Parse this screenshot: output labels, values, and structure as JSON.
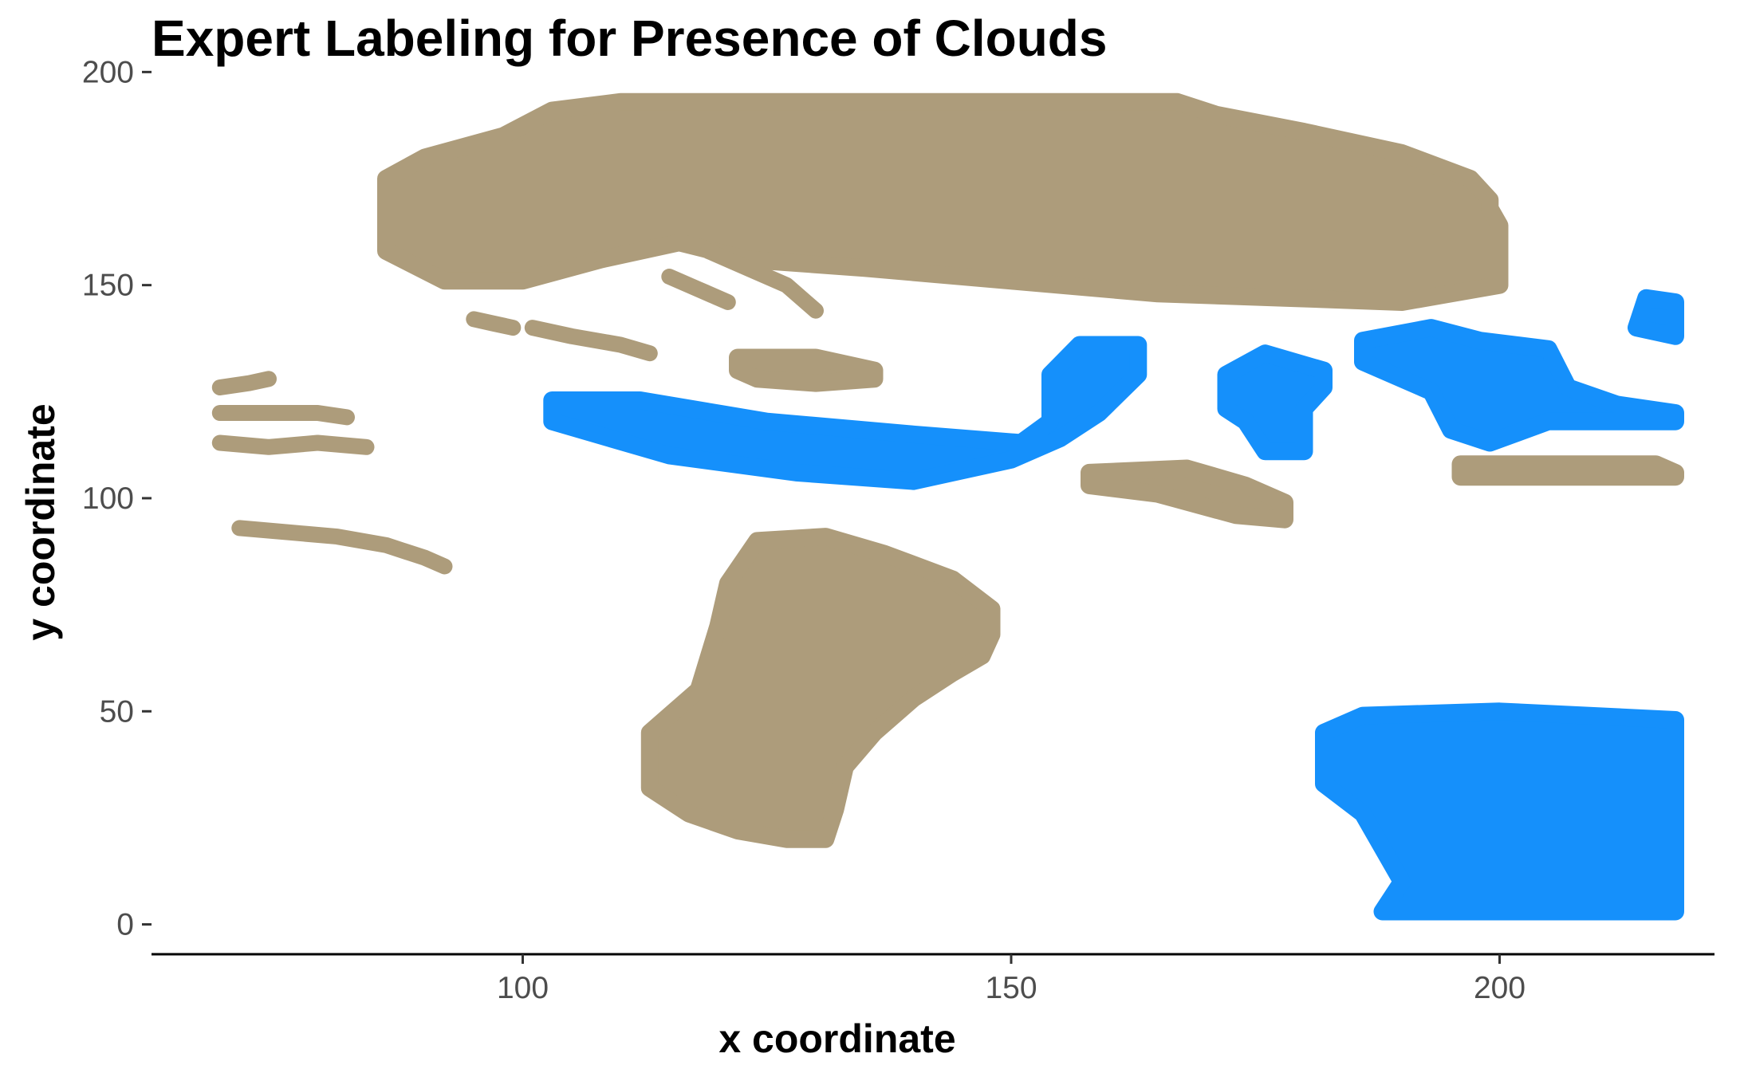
{
  "chart_data": {
    "type": "scatter",
    "title": "Expert Labeling for Presence of Clouds",
    "xlabel": "x coordinate",
    "ylabel": "y coordinate",
    "xlim": [
      62,
      222
    ],
    "ylim": [
      -7,
      201
    ],
    "xticks": [
      100,
      150,
      200
    ],
    "yticks": [
      0,
      50,
      100,
      150,
      200
    ],
    "grid": false,
    "legend": "none",
    "colors": {
      "tan": "#ad9c7b",
      "blue": "#1590fb"
    },
    "series": [
      {
        "color": "tan",
        "regions": [
          {
            "shape": "polygon",
            "points": [
              [
                86,
                175
              ],
              [
                90,
                180
              ],
              [
                98,
                185
              ],
              [
                103,
                191
              ],
              [
                110,
                193
              ],
              [
                167,
                193
              ],
              [
                171,
                190
              ],
              [
                180,
                186
              ],
              [
                190,
                181
              ],
              [
                197,
                175
              ],
              [
                199,
                170
              ],
              [
                199,
                168
              ],
              [
                200,
                164
              ],
              [
                200,
                150
              ],
              [
                190,
                146
              ],
              [
                178,
                147
              ],
              [
                165,
                148
              ],
              [
                150,
                151
              ],
              [
                135,
                154
              ],
              [
                123,
                156
              ],
              [
                116,
                160
              ],
              [
                108,
                156
              ],
              [
                100,
                151
              ],
              [
                92,
                151
              ],
              [
                86,
                158
              ]
            ]
          },
          {
            "shape": "polygon",
            "points": [
              [
                124,
                90
              ],
              [
                131,
                91
              ],
              [
                137,
                87
              ],
              [
                144,
                81
              ],
              [
                148,
                74
              ],
              [
                148,
                68
              ],
              [
                147,
                63
              ],
              [
                144,
                59
              ],
              [
                140,
                53
              ],
              [
                136,
                45
              ],
              [
                133,
                37
              ],
              [
                132,
                27
              ],
              [
                131,
                20
              ],
              [
                127,
                20
              ],
              [
                122,
                22
              ],
              [
                117,
                26
              ],
              [
                113,
                32
              ],
              [
                113,
                45
              ],
              [
                118,
                55
              ],
              [
                120,
                70
              ],
              [
                121,
                80
              ]
            ]
          },
          {
            "shape": "polyline",
            "points": [
              [
                69,
                126
              ],
              [
                72,
                127
              ],
              [
                74,
                128
              ]
            ]
          },
          {
            "shape": "polyline",
            "points": [
              [
                69,
                120
              ],
              [
                74,
                120
              ],
              [
                79,
                120
              ],
              [
                82,
                119
              ]
            ]
          },
          {
            "shape": "polyline",
            "points": [
              [
                69,
                113
              ],
              [
                74,
                112
              ],
              [
                79,
                113
              ],
              [
                84,
                112
              ]
            ]
          },
          {
            "shape": "polyline",
            "points": [
              [
                71,
                93
              ],
              [
                76,
                92
              ],
              [
                81,
                91
              ],
              [
                86,
                89
              ],
              [
                90,
                86
              ],
              [
                92,
                84
              ]
            ]
          },
          {
            "shape": "polyline",
            "points": [
              [
                95,
                142
              ],
              [
                97,
                141
              ],
              [
                99,
                140
              ]
            ]
          },
          {
            "shape": "polyline",
            "points": [
              [
                101,
                140
              ],
              [
                105,
                138
              ],
              [
                110,
                136
              ],
              [
                113,
                134
              ]
            ]
          },
          {
            "shape": "polyline",
            "points": [
              [
                115,
                152
              ],
              [
                118,
                149
              ],
              [
                121,
                146
              ]
            ]
          },
          {
            "shape": "polyline",
            "points": [
              [
                119,
                158
              ],
              [
                123,
                154
              ],
              [
                127,
                150
              ],
              [
                130,
                144
              ]
            ]
          },
          {
            "shape": "polygon",
            "points": [
              [
                122,
                133
              ],
              [
                130,
                133
              ],
              [
                136,
                130
              ],
              [
                136,
                128
              ],
              [
                130,
                127
              ],
              [
                124,
                128
              ],
              [
                122,
                130
              ]
            ]
          },
          {
            "shape": "polygon",
            "points": [
              [
                158,
                106
              ],
              [
                168,
                107
              ],
              [
                174,
                103
              ],
              [
                178,
                99
              ],
              [
                178,
                95
              ],
              [
                173,
                96
              ],
              [
                165,
                101
              ],
              [
                158,
                103
              ]
            ]
          },
          {
            "shape": "polygon",
            "points": [
              [
                196,
                108
              ],
              [
                216,
                108
              ],
              [
                218,
                106
              ],
              [
                218,
                105
              ],
              [
                196,
                105
              ]
            ]
          }
        ]
      },
      {
        "color": "blue",
        "regions": [
          {
            "shape": "polygon",
            "points": [
              [
                103,
                123
              ],
              [
                112,
                123
              ],
              [
                125,
                118
              ],
              [
                140,
                115
              ],
              [
                151,
                113
              ],
              [
                154,
                118
              ],
              [
                154,
                129
              ],
              [
                157,
                136
              ],
              [
                163,
                136
              ],
              [
                163,
                129
              ],
              [
                159,
                120
              ],
              [
                155,
                114
              ],
              [
                150,
                109
              ],
              [
                140,
                104
              ],
              [
                128,
                106
              ],
              [
                115,
                110
              ],
              [
                103,
                118
              ]
            ]
          },
          {
            "shape": "polygon",
            "points": [
              [
                172,
                129
              ],
              [
                176,
                134
              ],
              [
                182,
                130
              ],
              [
                182,
                126
              ],
              [
                180,
                121
              ],
              [
                180,
                111
              ],
              [
                176,
                111
              ],
              [
                174,
                118
              ],
              [
                172,
                121
              ]
            ]
          },
          {
            "shape": "polygon",
            "points": [
              [
                186,
                137
              ],
              [
                193,
                140
              ],
              [
                198,
                137
              ],
              [
                205,
                135
              ],
              [
                207,
                126
              ],
              [
                212,
                122
              ],
              [
                218,
                120
              ],
              [
                218,
                118
              ],
              [
                205,
                118
              ],
              [
                199,
                113
              ],
              [
                195,
                116
              ],
              [
                193,
                125
              ],
              [
                186,
                132
              ]
            ]
          },
          {
            "shape": "polygon",
            "points": [
              [
                215,
                147
              ],
              [
                218,
                146
              ],
              [
                218,
                138
              ],
              [
                214,
                140
              ]
            ]
          },
          {
            "shape": "polygon",
            "points": [
              [
                182,
                45
              ],
              [
                186,
                49
              ],
              [
                200,
                50
              ],
              [
                218,
                48
              ],
              [
                218,
                3
              ],
              [
                188,
                3
              ],
              [
                190,
                10
              ],
              [
                186,
                26
              ],
              [
                182,
                33
              ]
            ]
          }
        ]
      }
    ]
  }
}
